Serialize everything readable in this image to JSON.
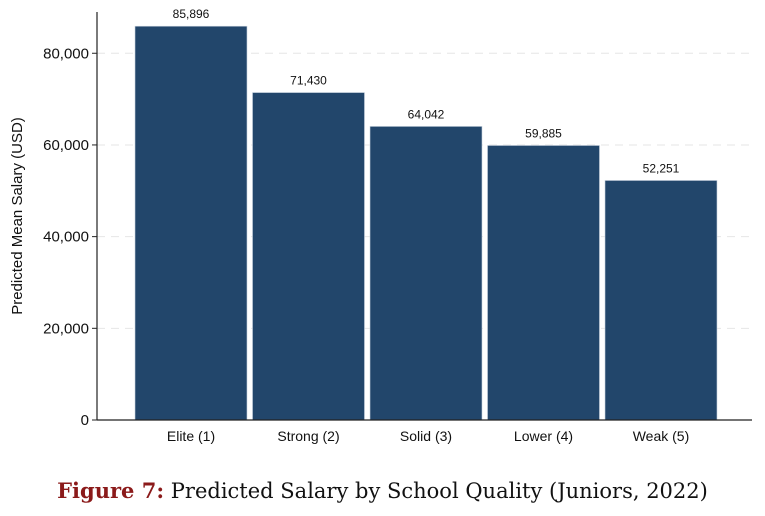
{
  "chart_data": {
    "type": "bar",
    "title": "",
    "xlabel": "",
    "ylabel": "Predicted Mean Salary (USD)",
    "categories": [
      "Elite (1)",
      "Strong (2)",
      "Solid (3)",
      "Lower (4)",
      "Weak (5)"
    ],
    "values": [
      85896,
      71430,
      64042,
      59885,
      52251
    ],
    "value_labels": [
      "85,896",
      "71,430",
      "64,042",
      "59,885",
      "52,251"
    ],
    "yticks": [
      0,
      20000,
      40000,
      60000,
      80000
    ],
    "ytick_labels": [
      "0",
      "20,000",
      "40,000",
      "60,000",
      "80,000"
    ],
    "ylim": [
      0,
      89000
    ],
    "grid": true,
    "bar_color": "#22466b"
  },
  "caption": {
    "label": "Figure 7:",
    "text": "Predicted Salary by School Quality (Juniors, 2022)"
  }
}
